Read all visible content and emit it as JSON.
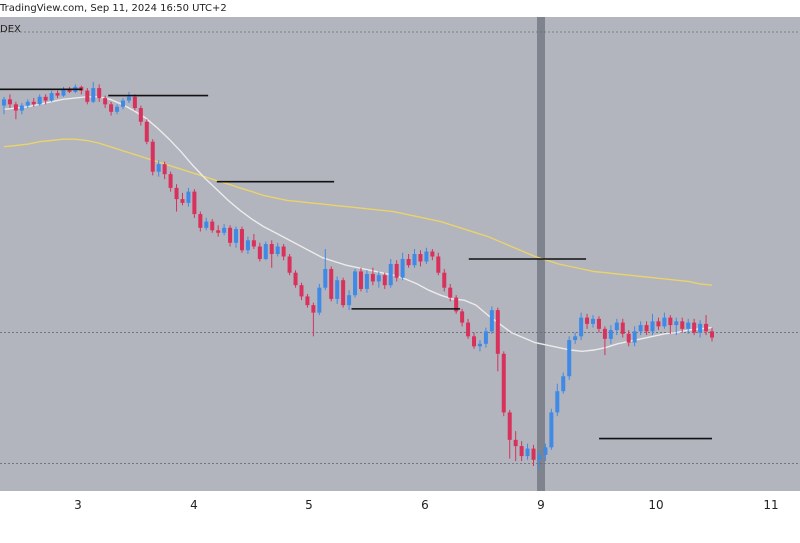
{
  "header": {
    "watermark": "TradingView.com, Sep 11, 2024 16:50 UTC+2",
    "symbol": "DEX"
  },
  "colors": {
    "background": "#b2b4be",
    "up": "#3f8ae6",
    "down": "#d8315b",
    "ma_fast": "#ececec",
    "ma_slow": "#e9d36b",
    "level": "#111111",
    "highlight": "#7f838d",
    "dotted": "#6a6e78"
  },
  "chart_data": {
    "type": "candlestick",
    "x_ticks": [
      "3",
      "4",
      "5",
      "6",
      "9",
      "10",
      "11"
    ],
    "highlighted_tick": "9",
    "candles": [
      {
        "o": 100.9,
        "c": 101.4,
        "h": 101.6,
        "l": 100.2
      },
      {
        "o": 101.4,
        "c": 101.0,
        "h": 101.8,
        "l": 100.7
      },
      {
        "o": 101.0,
        "c": 100.5,
        "h": 101.2,
        "l": 99.8
      },
      {
        "o": 100.5,
        "c": 100.9,
        "h": 101.1,
        "l": 100.2
      },
      {
        "o": 100.9,
        "c": 101.2,
        "h": 101.4,
        "l": 100.7
      },
      {
        "o": 101.2,
        "c": 101.0,
        "h": 101.5,
        "l": 100.8
      },
      {
        "o": 101.0,
        "c": 101.6,
        "h": 101.8,
        "l": 100.9
      },
      {
        "o": 101.6,
        "c": 101.3,
        "h": 101.8,
        "l": 101.0
      },
      {
        "o": 101.3,
        "c": 101.9,
        "h": 102.1,
        "l": 101.2
      },
      {
        "o": 101.9,
        "c": 101.7,
        "h": 102.1,
        "l": 101.5
      },
      {
        "o": 101.7,
        "c": 102.2,
        "h": 102.4,
        "l": 101.6
      },
      {
        "o": 102.2,
        "c": 102.0,
        "h": 102.4,
        "l": 101.9
      },
      {
        "o": 102.0,
        "c": 102.4,
        "h": 102.6,
        "l": 101.9
      },
      {
        "o": 102.4,
        "c": 102.1,
        "h": 102.5,
        "l": 101.8
      },
      {
        "o": 102.1,
        "c": 101.2,
        "h": 102.3,
        "l": 101.0
      },
      {
        "o": 101.2,
        "c": 102.3,
        "h": 102.8,
        "l": 101.1
      },
      {
        "o": 102.3,
        "c": 101.5,
        "h": 102.6,
        "l": 101.2
      },
      {
        "o": 101.5,
        "c": 101.0,
        "h": 101.7,
        "l": 100.7
      },
      {
        "o": 101.0,
        "c": 100.4,
        "h": 101.2,
        "l": 100.1
      },
      {
        "o": 100.4,
        "c": 100.8,
        "h": 101.0,
        "l": 100.2
      },
      {
        "o": 100.8,
        "c": 101.3,
        "h": 101.5,
        "l": 100.6
      },
      {
        "o": 101.3,
        "c": 101.6,
        "h": 102.0,
        "l": 101.1
      },
      {
        "o": 101.6,
        "c": 100.7,
        "h": 101.8,
        "l": 100.5
      },
      {
        "o": 100.7,
        "c": 99.6,
        "h": 100.9,
        "l": 99.3
      },
      {
        "o": 99.6,
        "c": 98.0,
        "h": 99.8,
        "l": 97.8
      },
      {
        "o": 98.0,
        "c": 95.6,
        "h": 98.2,
        "l": 95.3
      },
      {
        "o": 95.6,
        "c": 96.2,
        "h": 96.5,
        "l": 95.2
      },
      {
        "o": 96.2,
        "c": 95.4,
        "h": 96.4,
        "l": 95.0
      },
      {
        "o": 95.4,
        "c": 94.3,
        "h": 95.6,
        "l": 94.0
      },
      {
        "o": 94.3,
        "c": 93.4,
        "h": 94.6,
        "l": 92.4
      },
      {
        "o": 93.4,
        "c": 93.1,
        "h": 93.9,
        "l": 92.9
      },
      {
        "o": 93.1,
        "c": 94.0,
        "h": 94.3,
        "l": 92.8
      },
      {
        "o": 94.0,
        "c": 92.2,
        "h": 94.2,
        "l": 91.9
      },
      {
        "o": 92.2,
        "c": 91.1,
        "h": 92.4,
        "l": 90.8
      },
      {
        "o": 91.1,
        "c": 91.6,
        "h": 91.9,
        "l": 90.9
      },
      {
        "o": 91.6,
        "c": 90.9,
        "h": 91.8,
        "l": 90.7
      },
      {
        "o": 90.9,
        "c": 90.7,
        "h": 91.3,
        "l": 90.4
      },
      {
        "o": 90.7,
        "c": 91.1,
        "h": 91.4,
        "l": 90.5
      },
      {
        "o": 91.1,
        "c": 89.9,
        "h": 91.3,
        "l": 89.6
      },
      {
        "o": 89.9,
        "c": 91.0,
        "h": 91.2,
        "l": 89.5
      },
      {
        "o": 91.0,
        "c": 89.3,
        "h": 91.2,
        "l": 89.1
      },
      {
        "o": 89.3,
        "c": 90.1,
        "h": 90.4,
        "l": 89.0
      },
      {
        "o": 90.1,
        "c": 89.6,
        "h": 90.6,
        "l": 89.4
      },
      {
        "o": 89.6,
        "c": 88.6,
        "h": 89.9,
        "l": 88.4
      },
      {
        "o": 88.6,
        "c": 89.8,
        "h": 90.0,
        "l": 88.5
      },
      {
        "o": 89.8,
        "c": 89.0,
        "h": 90.1,
        "l": 87.9
      },
      {
        "o": 89.0,
        "c": 89.6,
        "h": 89.9,
        "l": 88.8
      },
      {
        "o": 89.6,
        "c": 88.8,
        "h": 89.8,
        "l": 88.5
      },
      {
        "o": 88.8,
        "c": 87.5,
        "h": 89.0,
        "l": 87.3
      },
      {
        "o": 87.5,
        "c": 86.5,
        "h": 87.7,
        "l": 86.3
      },
      {
        "o": 86.5,
        "c": 85.6,
        "h": 86.7,
        "l": 85.3
      },
      {
        "o": 85.6,
        "c": 84.9,
        "h": 85.8,
        "l": 84.7
      },
      {
        "o": 84.9,
        "c": 84.3,
        "h": 85.1,
        "l": 82.4
      },
      {
        "o": 84.3,
        "c": 86.3,
        "h": 86.6,
        "l": 84.1
      },
      {
        "o": 86.3,
        "c": 87.8,
        "h": 89.4,
        "l": 86.1
      },
      {
        "o": 87.8,
        "c": 85.4,
        "h": 88.0,
        "l": 85.2
      },
      {
        "o": 85.4,
        "c": 86.9,
        "h": 87.2,
        "l": 85.0
      },
      {
        "o": 86.9,
        "c": 84.9,
        "h": 87.1,
        "l": 84.7
      },
      {
        "o": 84.9,
        "c": 85.7,
        "h": 86.1,
        "l": 84.5
      },
      {
        "o": 85.7,
        "c": 87.6,
        "h": 87.8,
        "l": 85.5
      },
      {
        "o": 87.6,
        "c": 86.2,
        "h": 87.9,
        "l": 86.0
      },
      {
        "o": 86.2,
        "c": 87.4,
        "h": 87.7,
        "l": 85.9
      },
      {
        "o": 87.4,
        "c": 86.8,
        "h": 87.9,
        "l": 86.5
      },
      {
        "o": 86.8,
        "c": 87.3,
        "h": 87.6,
        "l": 86.3
      },
      {
        "o": 87.3,
        "c": 86.5,
        "h": 87.5,
        "l": 86.2
      },
      {
        "o": 86.5,
        "c": 88.2,
        "h": 88.6,
        "l": 86.3
      },
      {
        "o": 88.2,
        "c": 87.1,
        "h": 88.5,
        "l": 86.8
      },
      {
        "o": 87.1,
        "c": 88.6,
        "h": 89.1,
        "l": 86.9
      },
      {
        "o": 88.6,
        "c": 88.1,
        "h": 89.0,
        "l": 87.9
      },
      {
        "o": 88.1,
        "c": 89.0,
        "h": 89.4,
        "l": 87.9
      },
      {
        "o": 89.0,
        "c": 88.4,
        "h": 89.3,
        "l": 88.0
      },
      {
        "o": 88.4,
        "c": 89.2,
        "h": 89.5,
        "l": 88.2
      },
      {
        "o": 89.2,
        "c": 88.8,
        "h": 89.4,
        "l": 88.5
      },
      {
        "o": 88.8,
        "c": 87.5,
        "h": 89.1,
        "l": 87.3
      },
      {
        "o": 87.5,
        "c": 86.3,
        "h": 87.8,
        "l": 86.0
      },
      {
        "o": 86.3,
        "c": 85.5,
        "h": 86.6,
        "l": 85.2
      },
      {
        "o": 85.5,
        "c": 84.4,
        "h": 85.7,
        "l": 84.2
      },
      {
        "o": 84.4,
        "c": 83.5,
        "h": 84.6,
        "l": 83.2
      },
      {
        "o": 83.5,
        "c": 82.4,
        "h": 83.8,
        "l": 82.2
      },
      {
        "o": 82.4,
        "c": 81.6,
        "h": 82.7,
        "l": 81.4
      },
      {
        "o": 81.6,
        "c": 81.8,
        "h": 82.1,
        "l": 81.2
      },
      {
        "o": 81.8,
        "c": 82.8,
        "h": 83.1,
        "l": 81.5
      },
      {
        "o": 82.8,
        "c": 84.5,
        "h": 84.8,
        "l": 82.6
      },
      {
        "o": 84.5,
        "c": 81.0,
        "h": 84.7,
        "l": 79.6
      },
      {
        "o": 81.0,
        "c": 76.3,
        "h": 81.2,
        "l": 76.0
      },
      {
        "o": 76.3,
        "c": 74.1,
        "h": 76.5,
        "l": 72.6
      },
      {
        "o": 74.1,
        "c": 73.6,
        "h": 74.8,
        "l": 72.4
      },
      {
        "o": 73.6,
        "c": 72.8,
        "h": 74.0,
        "l": 72.4
      },
      {
        "o": 72.8,
        "c": 73.4,
        "h": 73.8,
        "l": 72.5
      },
      {
        "o": 73.4,
        "c": 72.5,
        "h": 73.7,
        "l": 72.0
      },
      {
        "o": 72.5,
        "c": 72.9,
        "h": 73.2,
        "l": 71.7
      },
      {
        "o": 72.9,
        "c": 73.5,
        "h": 73.8,
        "l": 72.4
      },
      {
        "o": 73.5,
        "c": 76.3,
        "h": 76.6,
        "l": 73.3
      },
      {
        "o": 76.3,
        "c": 78.0,
        "h": 78.6,
        "l": 76.0
      },
      {
        "o": 78.0,
        "c": 79.2,
        "h": 79.5,
        "l": 77.8
      },
      {
        "o": 79.2,
        "c": 82.1,
        "h": 82.4,
        "l": 78.9
      },
      {
        "o": 82.1,
        "c": 82.4,
        "h": 82.7,
        "l": 81.8
      },
      {
        "o": 82.4,
        "c": 83.9,
        "h": 84.3,
        "l": 82.1
      },
      {
        "o": 83.9,
        "c": 83.4,
        "h": 84.2,
        "l": 83.0
      },
      {
        "o": 83.4,
        "c": 83.8,
        "h": 84.1,
        "l": 83.1
      },
      {
        "o": 83.8,
        "c": 83.0,
        "h": 84.0,
        "l": 82.7
      },
      {
        "o": 83.0,
        "c": 82.2,
        "h": 83.2,
        "l": 80.9
      },
      {
        "o": 82.2,
        "c": 82.9,
        "h": 83.3,
        "l": 81.8
      },
      {
        "o": 82.9,
        "c": 83.5,
        "h": 83.8,
        "l": 82.5
      },
      {
        "o": 83.5,
        "c": 82.6,
        "h": 83.8,
        "l": 82.3
      },
      {
        "o": 82.6,
        "c": 81.9,
        "h": 82.9,
        "l": 81.6
      },
      {
        "o": 81.9,
        "c": 82.8,
        "h": 83.2,
        "l": 81.6
      },
      {
        "o": 82.8,
        "c": 83.3,
        "h": 83.6,
        "l": 82.5
      },
      {
        "o": 83.3,
        "c": 82.8,
        "h": 83.6,
        "l": 82.5
      },
      {
        "o": 82.8,
        "c": 83.6,
        "h": 84.2,
        "l": 82.5
      },
      {
        "o": 83.6,
        "c": 83.2,
        "h": 83.9,
        "l": 82.9
      },
      {
        "o": 83.2,
        "c": 83.9,
        "h": 84.3,
        "l": 83.0
      },
      {
        "o": 83.9,
        "c": 83.3,
        "h": 84.1,
        "l": 82.6
      },
      {
        "o": 83.3,
        "c": 83.6,
        "h": 83.9,
        "l": 82.5
      },
      {
        "o": 83.6,
        "c": 83.0,
        "h": 83.9,
        "l": 82.7
      },
      {
        "o": 83.0,
        "c": 83.5,
        "h": 83.8,
        "l": 82.6
      },
      {
        "o": 83.5,
        "c": 82.7,
        "h": 83.8,
        "l": 82.5
      },
      {
        "o": 82.7,
        "c": 83.4,
        "h": 83.7,
        "l": 82.3
      },
      {
        "o": 83.4,
        "c": 82.8,
        "h": 84.1,
        "l": 82.5
      },
      {
        "o": 82.8,
        "c": 82.3,
        "h": 83.1,
        "l": 82.0
      }
    ],
    "ma_fast": [
      100.6,
      100.7,
      100.8,
      101.0,
      101.2,
      101.4,
      101.5,
      101.6,
      101.6,
      101.4,
      101.0,
      100.5,
      99.9,
      99.1,
      98.2,
      97.2,
      96.1,
      95.1,
      94.2,
      93.3,
      92.5,
      91.8,
      91.2,
      90.7,
      90.2,
      89.7,
      89.2,
      88.7,
      88.4,
      88.1,
      87.9,
      87.7,
      87.5,
      87.3,
      87.0,
      86.6,
      86.1,
      85.7,
      85.4,
      85.3,
      84.9,
      84.1,
      83.4,
      82.7,
      82.3,
      81.9,
      81.7,
      81.5,
      81.3,
      81.2,
      81.3,
      81.5,
      81.8,
      82.0,
      82.2,
      82.4,
      82.6,
      82.7,
      82.9,
      83.0,
      83.1
    ],
    "ma_slow": [
      97.6,
      97.7,
      97.8,
      98.0,
      98.1,
      98.2,
      98.2,
      98.1,
      97.9,
      97.6,
      97.3,
      97.0,
      96.7,
      96.4,
      96.1,
      95.8,
      95.5,
      95.2,
      94.9,
      94.6,
      94.3,
      94.0,
      93.7,
      93.5,
      93.3,
      93.2,
      93.1,
      93.0,
      92.9,
      92.8,
      92.7,
      92.6,
      92.5,
      92.4,
      92.2,
      92.0,
      91.8,
      91.6,
      91.3,
      91.0,
      90.7,
      90.4,
      90.0,
      89.6,
      89.2,
      88.8,
      88.5,
      88.2,
      88.0,
      87.8,
      87.6,
      87.5,
      87.4,
      87.3,
      87.2,
      87.1,
      87.0,
      86.9,
      86.8,
      86.6,
      86.5
    ],
    "levels": [
      {
        "price": 102.2,
        "from": 0,
        "to": 36
      },
      {
        "price": 101.7,
        "from": 48,
        "to": 94
      },
      {
        "price": 94.8,
        "from": 98,
        "to": 152
      },
      {
        "price": 84.6,
        "from": 160,
        "to": 210
      },
      {
        "price": 88.6,
        "from": 214,
        "to": 268
      },
      {
        "price": 74.2,
        "from": 274,
        "to": 326
      }
    ],
    "dotted_lines": [
      106.8,
      82.7,
      72.2
    ],
    "highlight_bar": 9
  }
}
